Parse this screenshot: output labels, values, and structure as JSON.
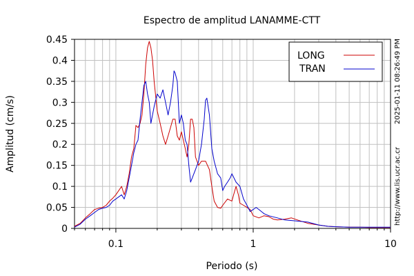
{
  "chart_data": {
    "type": "line",
    "title": "Espectro de amplitud LANAMME-CTT",
    "xlabel": "Periodo (s)",
    "ylabel": "Amplitud (cm/s)",
    "xscale": "log",
    "xlim": [
      0.05,
      10
    ],
    "ylim": [
      0,
      0.45
    ],
    "xticks": [
      {
        "value": 0.1,
        "label": "0.1"
      },
      {
        "value": 1,
        "label": "1"
      },
      {
        "value": 10,
        "label": "10"
      }
    ],
    "yticks": [
      {
        "value": 0,
        "label": "0"
      },
      {
        "value": 0.05,
        "label": "0.05"
      },
      {
        "value": 0.1,
        "label": "0.1"
      },
      {
        "value": 0.15,
        "label": "0.15"
      },
      {
        "value": 0.2,
        "label": "0.2"
      },
      {
        "value": 0.25,
        "label": "0.25"
      },
      {
        "value": 0.3,
        "label": "0.3"
      },
      {
        "value": 0.35,
        "label": "0.35"
      },
      {
        "value": 0.4,
        "label": "0.4"
      },
      {
        "value": 0.45,
        "label": "0.45"
      }
    ],
    "grid": true,
    "legend_position": "top-right",
    "side_text": [
      "2025-01-11 08:26:49 PM",
      "http://www.lis.ucr.ac.cr"
    ],
    "series": [
      {
        "name": "LONG",
        "color": "#cc0000",
        "points": [
          [
            0.05,
            0.005
          ],
          [
            0.055,
            0.012
          ],
          [
            0.06,
            0.025
          ],
          [
            0.065,
            0.035
          ],
          [
            0.07,
            0.045
          ],
          [
            0.075,
            0.048
          ],
          [
            0.08,
            0.05
          ],
          [
            0.085,
            0.055
          ],
          [
            0.09,
            0.065
          ],
          [
            0.095,
            0.072
          ],
          [
            0.1,
            0.08
          ],
          [
            0.105,
            0.09
          ],
          [
            0.11,
            0.1
          ],
          [
            0.115,
            0.08
          ],
          [
            0.12,
            0.1
          ],
          [
            0.125,
            0.13
          ],
          [
            0.13,
            0.17
          ],
          [
            0.135,
            0.19
          ],
          [
            0.14,
            0.245
          ],
          [
            0.145,
            0.24
          ],
          [
            0.15,
            0.25
          ],
          [
            0.155,
            0.27
          ],
          [
            0.16,
            0.32
          ],
          [
            0.165,
            0.39
          ],
          [
            0.17,
            0.43
          ],
          [
            0.175,
            0.445
          ],
          [
            0.18,
            0.43
          ],
          [
            0.185,
            0.4
          ],
          [
            0.19,
            0.35
          ],
          [
            0.2,
            0.28
          ],
          [
            0.21,
            0.25
          ],
          [
            0.22,
            0.22
          ],
          [
            0.23,
            0.2
          ],
          [
            0.24,
            0.22
          ],
          [
            0.25,
            0.24
          ],
          [
            0.26,
            0.26
          ],
          [
            0.27,
            0.26
          ],
          [
            0.28,
            0.22
          ],
          [
            0.29,
            0.21
          ],
          [
            0.3,
            0.23
          ],
          [
            0.31,
            0.21
          ],
          [
            0.32,
            0.19
          ],
          [
            0.33,
            0.17
          ],
          [
            0.34,
            0.2
          ],
          [
            0.35,
            0.26
          ],
          [
            0.36,
            0.26
          ],
          [
            0.37,
            0.24
          ],
          [
            0.38,
            0.17
          ],
          [
            0.4,
            0.15
          ],
          [
            0.42,
            0.16
          ],
          [
            0.45,
            0.16
          ],
          [
            0.48,
            0.14
          ],
          [
            0.5,
            0.1
          ],
          [
            0.52,
            0.065
          ],
          [
            0.55,
            0.05
          ],
          [
            0.58,
            0.048
          ],
          [
            0.6,
            0.055
          ],
          [
            0.65,
            0.07
          ],
          [
            0.7,
            0.065
          ],
          [
            0.72,
            0.08
          ],
          [
            0.75,
            0.1
          ],
          [
            0.78,
            0.08
          ],
          [
            0.8,
            0.06
          ],
          [
            0.85,
            0.055
          ],
          [
            0.9,
            0.05
          ],
          [
            0.95,
            0.045
          ],
          [
            1.0,
            0.03
          ],
          [
            1.1,
            0.025
          ],
          [
            1.2,
            0.03
          ],
          [
            1.3,
            0.028
          ],
          [
            1.4,
            0.022
          ],
          [
            1.5,
            0.02
          ],
          [
            1.7,
            0.022
          ],
          [
            1.9,
            0.025
          ],
          [
            2.1,
            0.02
          ],
          [
            2.5,
            0.012
          ],
          [
            3.0,
            0.008
          ],
          [
            3.5,
            0.005
          ],
          [
            4.0,
            0.004
          ],
          [
            5.0,
            0.003
          ],
          [
            6.0,
            0.003
          ],
          [
            7.0,
            0.002
          ],
          [
            8.0,
            0.002
          ],
          [
            9.0,
            0.002
          ],
          [
            10.0,
            0.002
          ]
        ]
      },
      {
        "name": "TRAN",
        "color": "#0000cc",
        "points": [
          [
            0.05,
            0.003
          ],
          [
            0.055,
            0.01
          ],
          [
            0.06,
            0.022
          ],
          [
            0.065,
            0.03
          ],
          [
            0.07,
            0.038
          ],
          [
            0.075,
            0.045
          ],
          [
            0.08,
            0.048
          ],
          [
            0.085,
            0.05
          ],
          [
            0.09,
            0.055
          ],
          [
            0.095,
            0.065
          ],
          [
            0.1,
            0.07
          ],
          [
            0.105,
            0.075
          ],
          [
            0.11,
            0.08
          ],
          [
            0.115,
            0.07
          ],
          [
            0.12,
            0.09
          ],
          [
            0.125,
            0.12
          ],
          [
            0.13,
            0.15
          ],
          [
            0.135,
            0.18
          ],
          [
            0.14,
            0.2
          ],
          [
            0.145,
            0.21
          ],
          [
            0.15,
            0.26
          ],
          [
            0.155,
            0.3
          ],
          [
            0.16,
            0.34
          ],
          [
            0.165,
            0.35
          ],
          [
            0.17,
            0.32
          ],
          [
            0.175,
            0.3
          ],
          [
            0.18,
            0.25
          ],
          [
            0.19,
            0.29
          ],
          [
            0.2,
            0.32
          ],
          [
            0.21,
            0.31
          ],
          [
            0.22,
            0.33
          ],
          [
            0.23,
            0.3
          ],
          [
            0.24,
            0.27
          ],
          [
            0.25,
            0.3
          ],
          [
            0.26,
            0.34
          ],
          [
            0.265,
            0.375
          ],
          [
            0.27,
            0.37
          ],
          [
            0.28,
            0.35
          ],
          [
            0.29,
            0.25
          ],
          [
            0.3,
            0.27
          ],
          [
            0.31,
            0.25
          ],
          [
            0.32,
            0.21
          ],
          [
            0.33,
            0.2
          ],
          [
            0.34,
            0.15
          ],
          [
            0.35,
            0.11
          ],
          [
            0.36,
            0.12
          ],
          [
            0.38,
            0.14
          ],
          [
            0.4,
            0.16
          ],
          [
            0.42,
            0.2
          ],
          [
            0.44,
            0.26
          ],
          [
            0.45,
            0.305
          ],
          [
            0.46,
            0.31
          ],
          [
            0.48,
            0.27
          ],
          [
            0.5,
            0.19
          ],
          [
            0.52,
            0.16
          ],
          [
            0.55,
            0.13
          ],
          [
            0.58,
            0.12
          ],
          [
            0.6,
            0.09
          ],
          [
            0.62,
            0.1
          ],
          [
            0.65,
            0.11
          ],
          [
            0.68,
            0.12
          ],
          [
            0.7,
            0.13
          ],
          [
            0.75,
            0.11
          ],
          [
            0.8,
            0.1
          ],
          [
            0.85,
            0.07
          ],
          [
            0.9,
            0.055
          ],
          [
            0.95,
            0.04
          ],
          [
            1.0,
            0.045
          ],
          [
            1.05,
            0.05
          ],
          [
            1.1,
            0.045
          ],
          [
            1.2,
            0.035
          ],
          [
            1.3,
            0.03
          ],
          [
            1.5,
            0.025
          ],
          [
            1.7,
            0.02
          ],
          [
            2.0,
            0.018
          ],
          [
            2.5,
            0.015
          ],
          [
            3.0,
            0.008
          ],
          [
            3.5,
            0.005
          ],
          [
            4.0,
            0.004
          ],
          [
            5.0,
            0.003
          ],
          [
            6.0,
            0.003
          ],
          [
            7.0,
            0.003
          ],
          [
            8.0,
            0.003
          ],
          [
            9.0,
            0.003
          ],
          [
            10.0,
            0.003
          ]
        ]
      }
    ]
  }
}
